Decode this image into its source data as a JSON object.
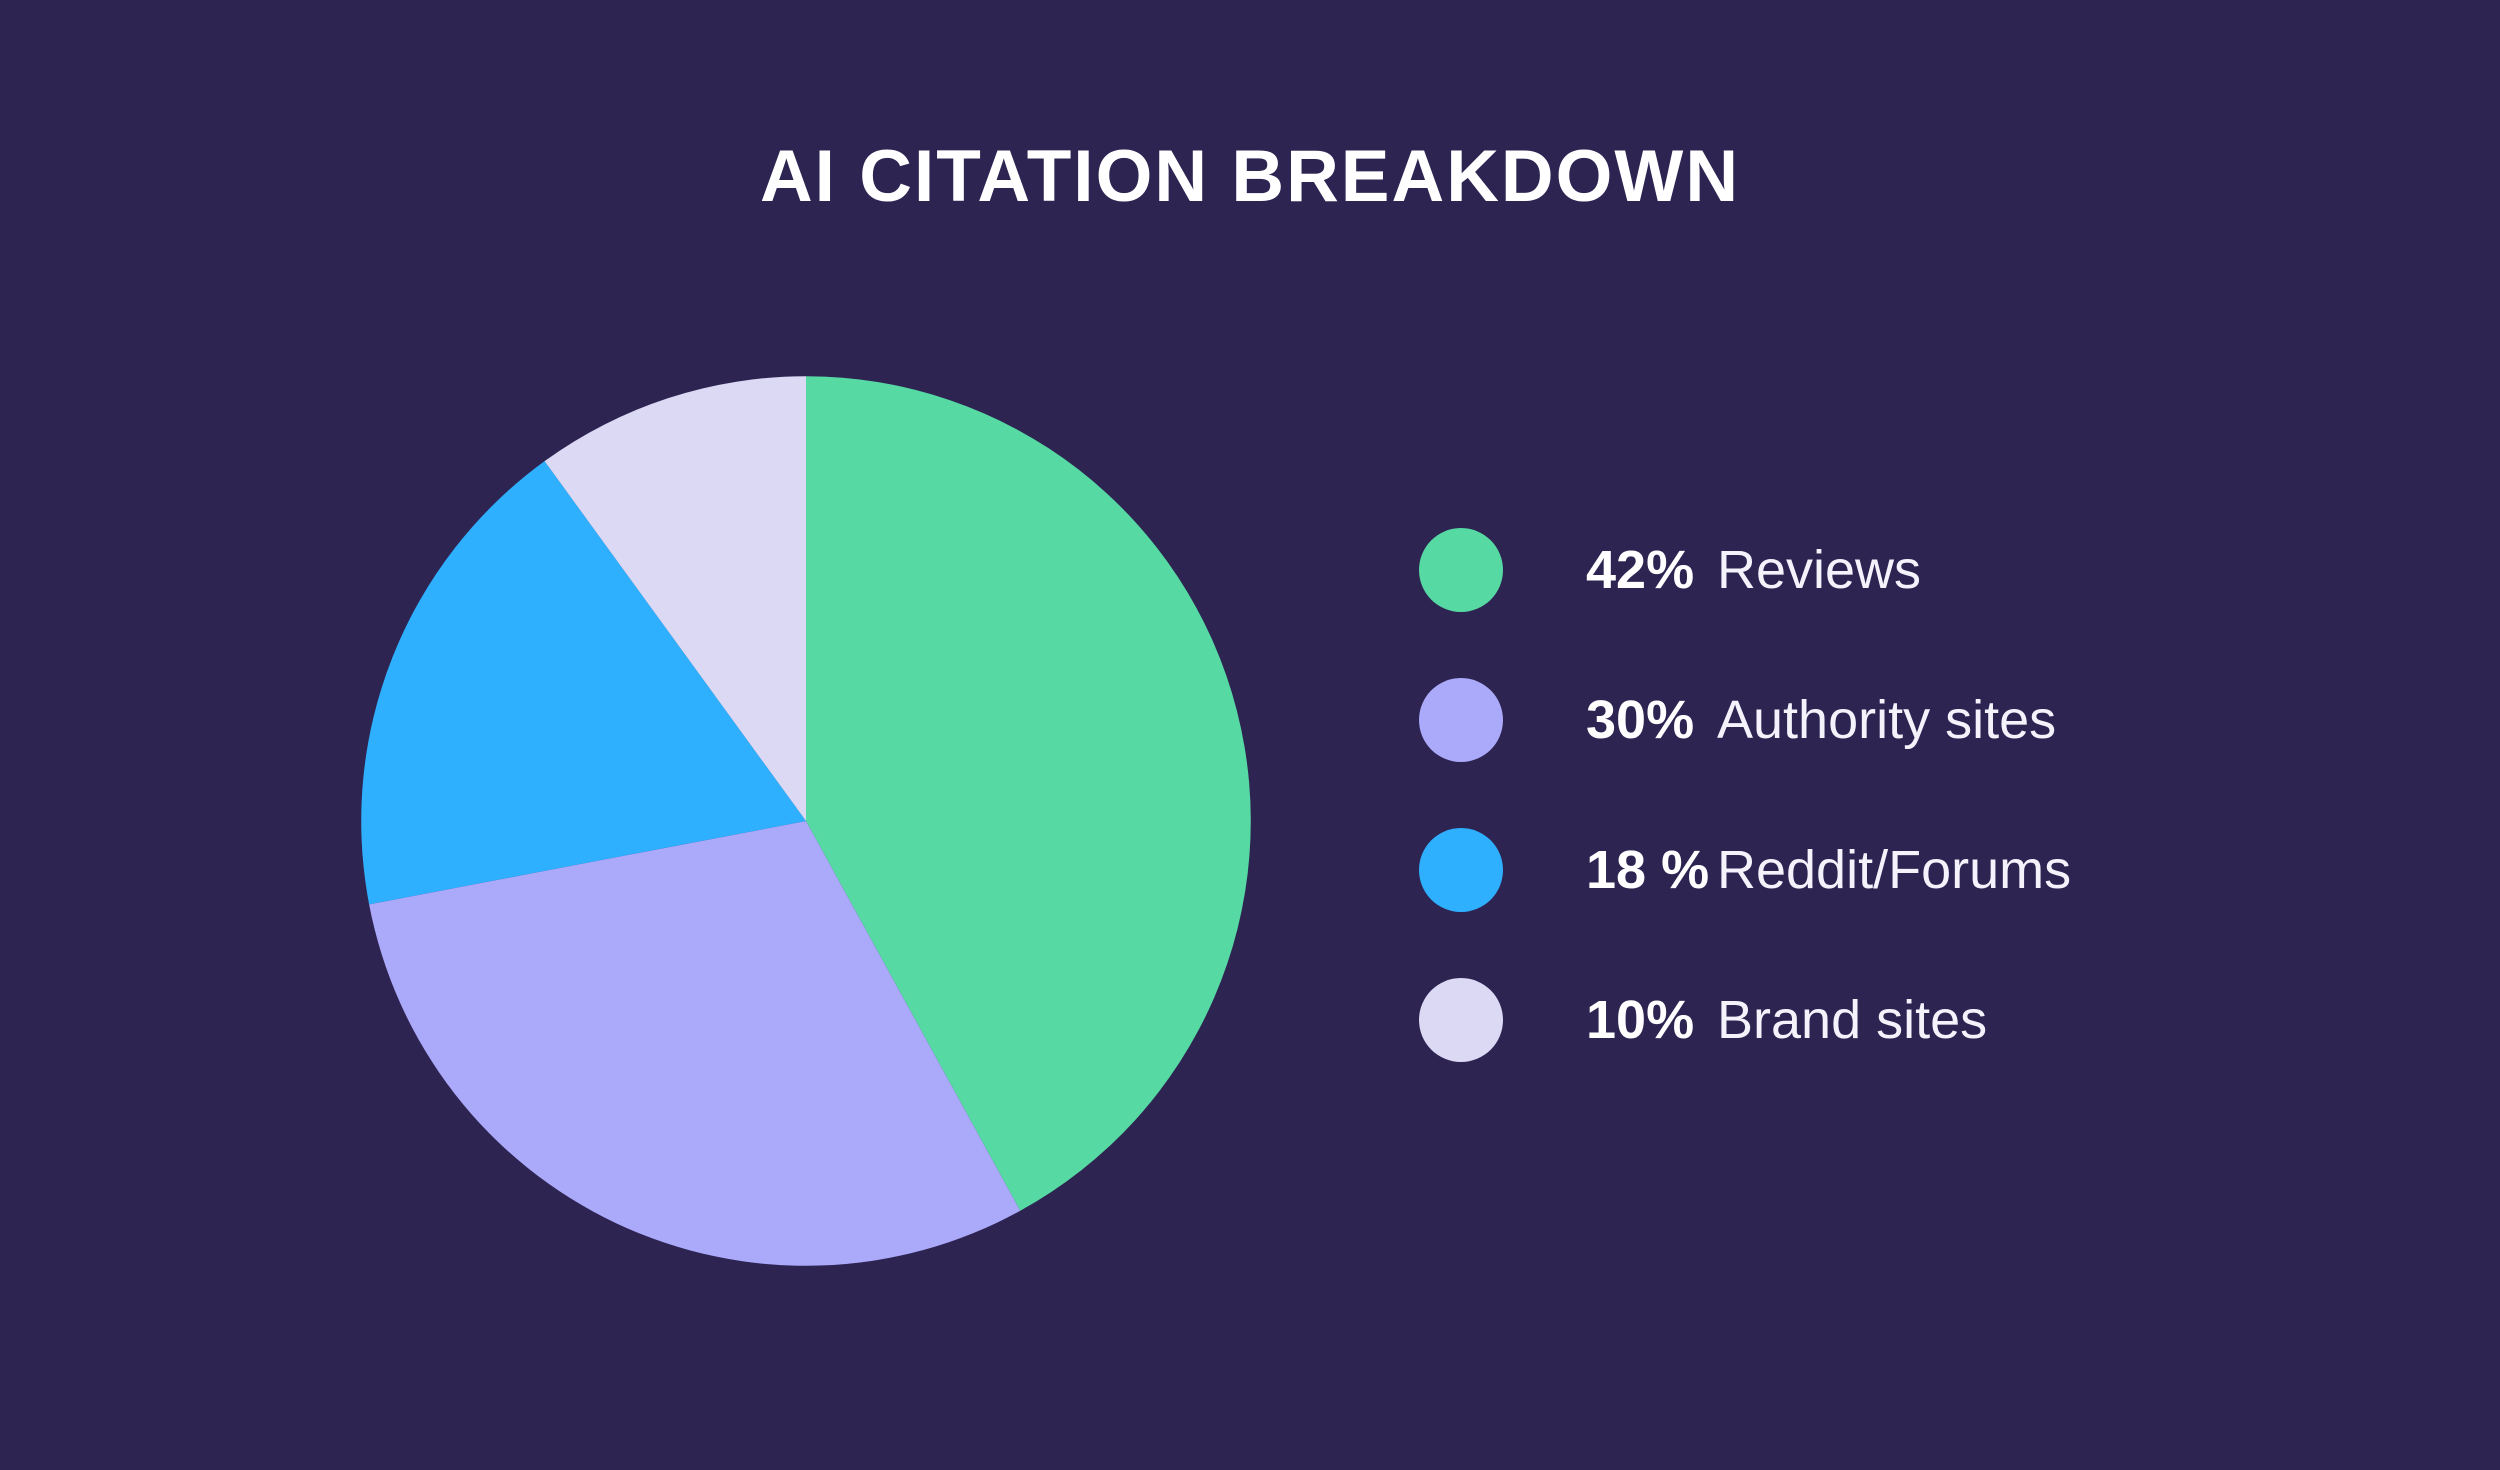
{
  "page": {
    "background_color": "#2D2452"
  },
  "chart_data": {
    "type": "pie",
    "title": "AI CITATION BREAKDOWN",
    "title_color": "#FFFFFF",
    "text_color": "#FFFFFF",
    "legend_position": "right",
    "start_angle_deg": 0,
    "direction": "clockwise",
    "total": 100,
    "slices": [
      {
        "label": "Reviews",
        "value": 42,
        "pct_label": "42%",
        "color": "#57D9A3"
      },
      {
        "label": "Authority sites",
        "value": 30,
        "pct_label": "30%",
        "color": "#ABA9FA"
      },
      {
        "label": "Reddit/Forums",
        "value": 18,
        "pct_label": "18 %",
        "color": "#2EB0FF"
      },
      {
        "label": "Brand sites",
        "value": 10,
        "pct_label": "10%",
        "color": "#DBD9F4"
      }
    ]
  }
}
